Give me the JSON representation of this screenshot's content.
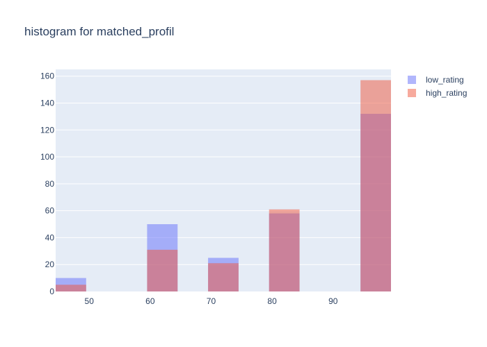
{
  "chart_data": {
    "type": "histogram",
    "title": "histogram for matched_profil",
    "xlabel": "",
    "ylabel": "",
    "xlim": [
      44.5,
      99.5
    ],
    "ylim": [
      0,
      165
    ],
    "x_ticks": [
      50,
      60,
      70,
      80,
      90
    ],
    "y_ticks": [
      0,
      20,
      40,
      60,
      80,
      100,
      120,
      140,
      160
    ],
    "grid": true,
    "barmode": "overlay",
    "legend_position": "top-right",
    "series": [
      {
        "name": "low_rating",
        "color": "#636efa",
        "opacity": 0.5,
        "bins": [
          {
            "x0": 44.5,
            "x1": 49.5,
            "count": 10
          },
          {
            "x0": 59.5,
            "x1": 64.5,
            "count": 50
          },
          {
            "x0": 69.5,
            "x1": 74.5,
            "count": 25
          },
          {
            "x0": 79.5,
            "x1": 84.5,
            "count": 58
          },
          {
            "x0": 94.5,
            "x1": 99.5,
            "count": 132
          }
        ]
      },
      {
        "name": "high_rating",
        "color": "#ef553b",
        "opacity": 0.5,
        "bins": [
          {
            "x0": 44.5,
            "x1": 49.5,
            "count": 5
          },
          {
            "x0": 59.5,
            "x1": 64.5,
            "count": 31
          },
          {
            "x0": 69.5,
            "x1": 74.5,
            "count": 21
          },
          {
            "x0": 79.5,
            "x1": 84.5,
            "count": 61
          },
          {
            "x0": 94.5,
            "x1": 99.5,
            "count": 157
          }
        ]
      }
    ]
  }
}
